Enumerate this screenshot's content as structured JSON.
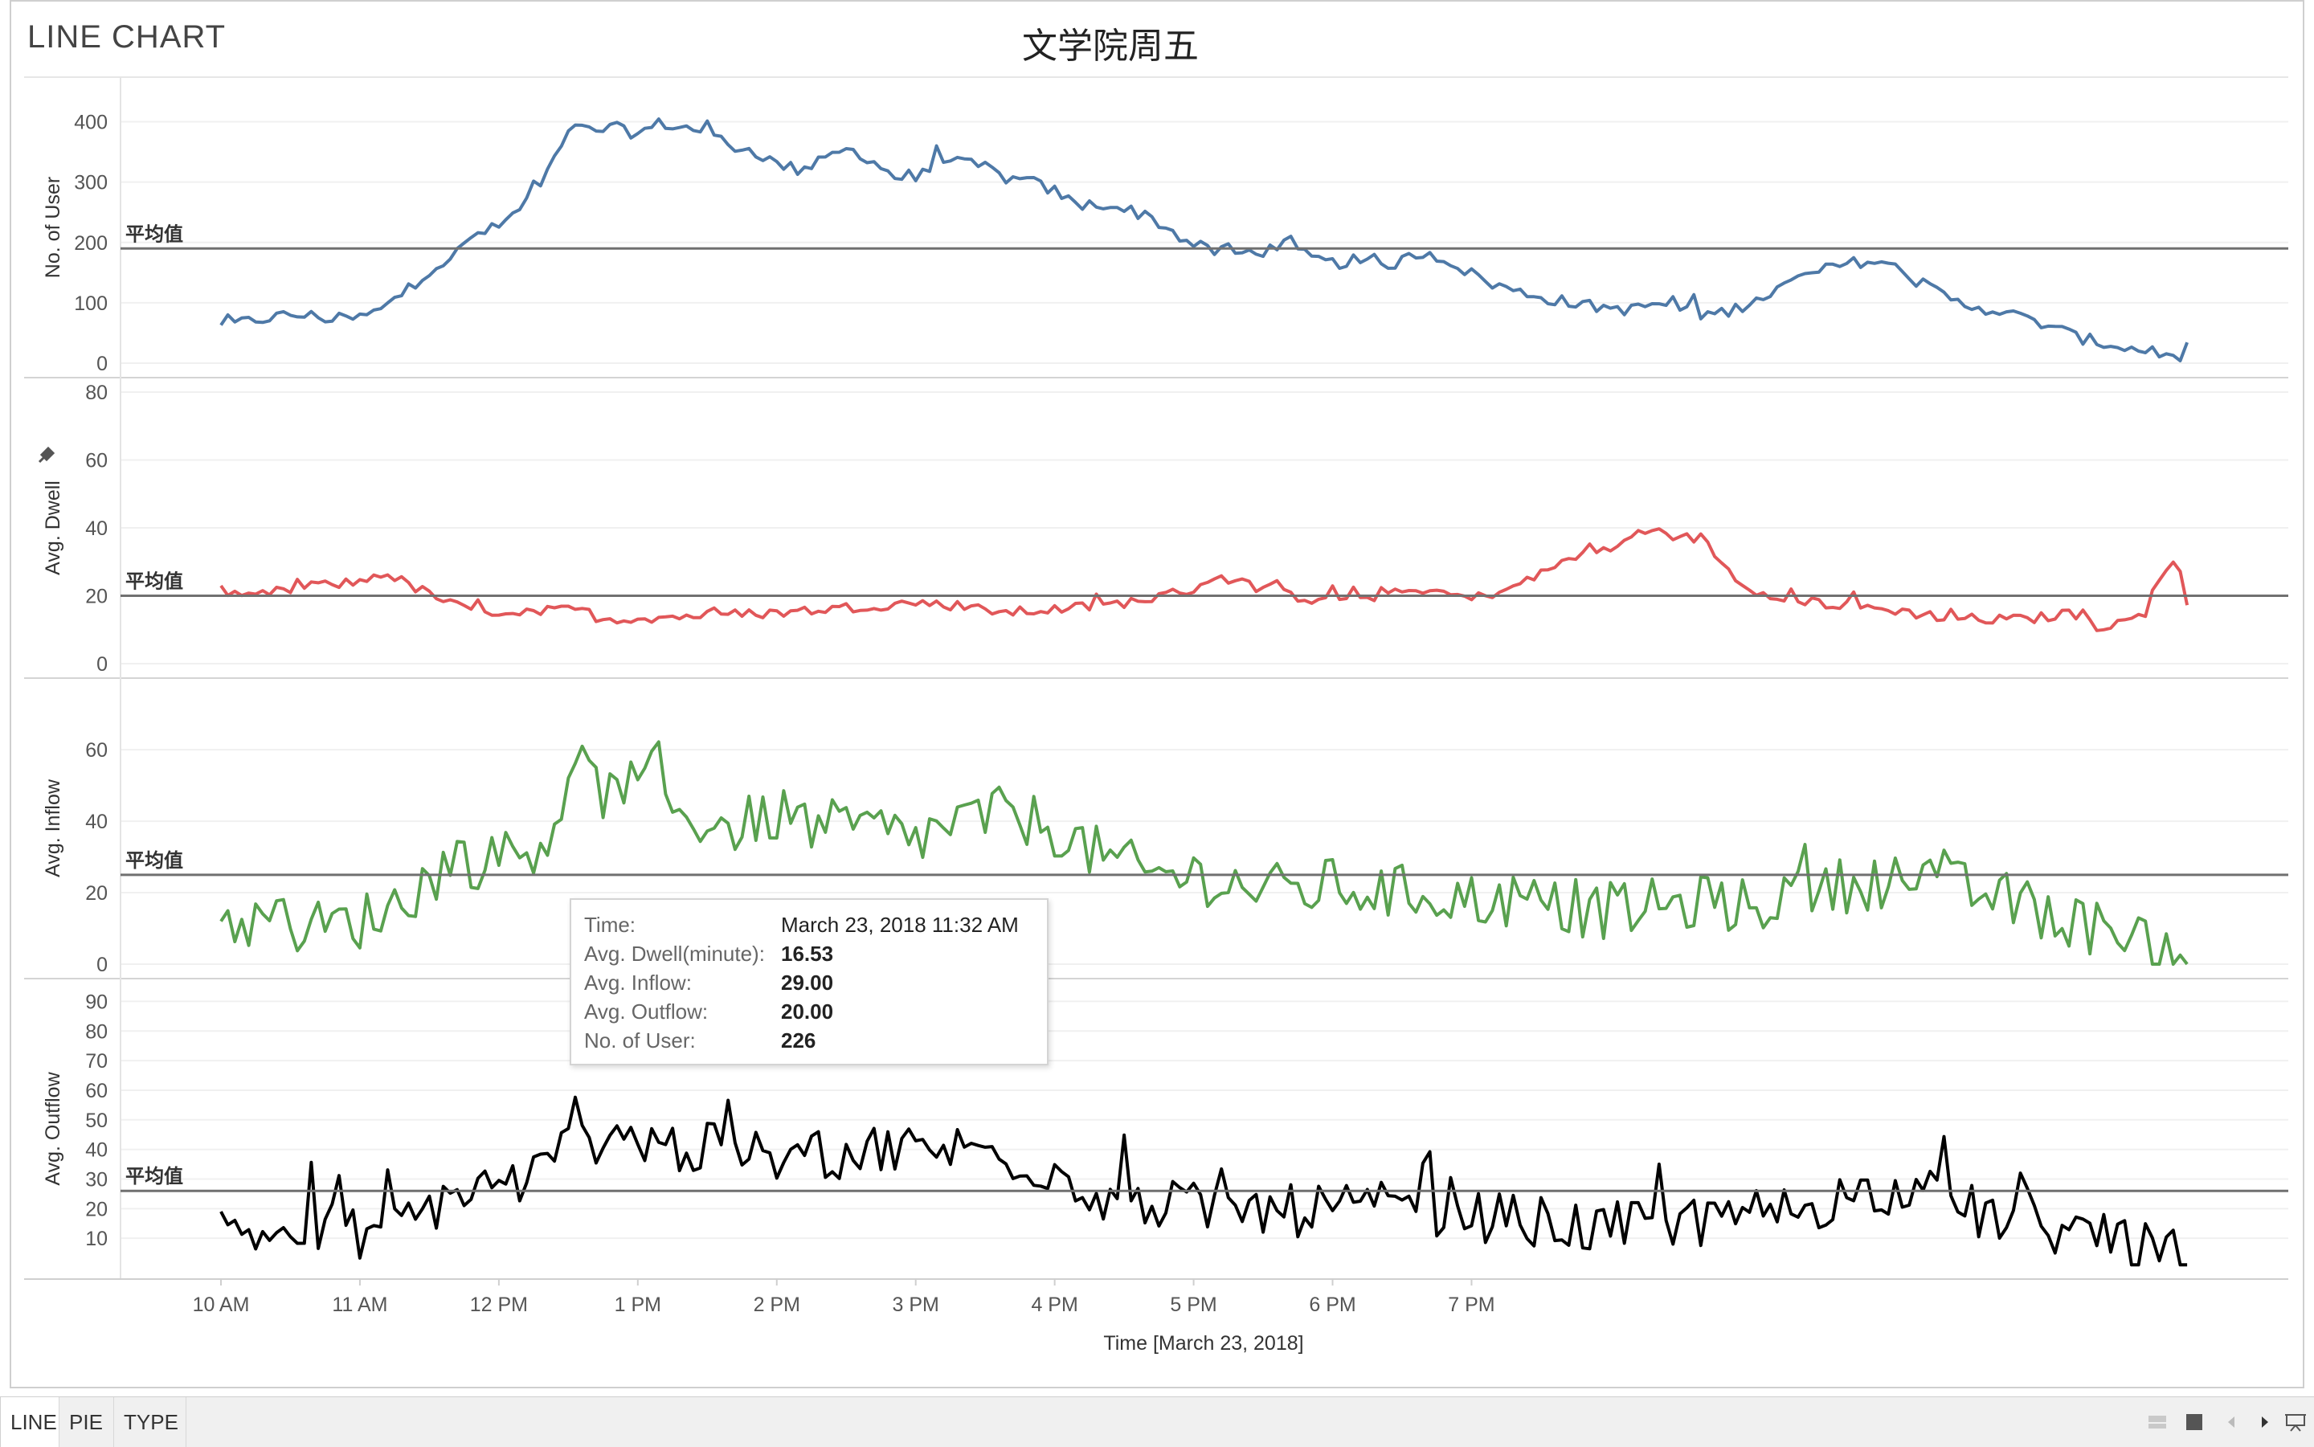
{
  "sheet": {
    "title": "LINE CHART"
  },
  "tabs": [
    {
      "label": "LINE"
    },
    {
      "label": "PIE"
    },
    {
      "label": "TYPE"
    }
  ],
  "nav_icons": [
    "grid-view-icon",
    "single-view-icon",
    "previous-icon",
    "next-icon",
    "present-icon"
  ],
  "tooltip": {
    "rows": [
      {
        "label": "Time:",
        "value": "March 23, 2018 11:32 AM"
      },
      {
        "label": "Avg. Dwell(minute):",
        "value": "16.53"
      },
      {
        "label": "Avg. Inflow:",
        "value": "29.00"
      },
      {
        "label": "Avg. Outflow:",
        "value": "20.00"
      },
      {
        "label": "No. of User:",
        "value": "226"
      }
    ]
  },
  "chart_data": {
    "type": "line",
    "title": "文学院周五",
    "xlabel": "Time [March 23, 2018]",
    "x_ticks": [
      "10 AM",
      "11 AM",
      "12 PM",
      "1 PM",
      "2 PM",
      "3 PM",
      "4 PM",
      "5 PM",
      "6 PM",
      "7 PM"
    ],
    "x_range": [
      "10:00 AM",
      "7:30 PM"
    ],
    "reference_label": "平均值",
    "panels": [
      {
        "name": "No. of User",
        "ylabel": "No. of User",
        "color": "#4e79a7",
        "ylim": [
          0,
          450
        ],
        "yticks": [
          0,
          100,
          200,
          300,
          400
        ],
        "reference": 190,
        "noise": 10,
        "points": [
          [
            0,
            60
          ],
          [
            10,
            68
          ],
          [
            20,
            75
          ],
          [
            30,
            80
          ],
          [
            40,
            78
          ],
          [
            50,
            72
          ],
          [
            60,
            75
          ],
          [
            70,
            90
          ],
          [
            80,
            120
          ],
          [
            90,
            155
          ],
          [
            100,
            175
          ],
          [
            110,
            215
          ],
          [
            120,
            225
          ],
          [
            130,
            260
          ],
          [
            140,
            310
          ],
          [
            145,
            350
          ],
          [
            150,
            390
          ],
          [
            160,
            385
          ],
          [
            170,
            390
          ],
          [
            180,
            380
          ],
          [
            190,
            398
          ],
          [
            200,
            390
          ],
          [
            210,
            385
          ],
          [
            220,
            360
          ],
          [
            230,
            352
          ],
          [
            240,
            330
          ],
          [
            250,
            320
          ],
          [
            260,
            335
          ],
          [
            270,
            355
          ],
          [
            280,
            340
          ],
          [
            290,
            310
          ],
          [
            300,
            300
          ],
          [
            310,
            345
          ],
          [
            320,
            330
          ],
          [
            330,
            325
          ],
          [
            340,
            305
          ],
          [
            350,
            300
          ],
          [
            360,
            285
          ],
          [
            370,
            260
          ],
          [
            380,
            265
          ],
          [
            390,
            255
          ],
          [
            400,
            245
          ],
          [
            410,
            220
          ],
          [
            420,
            195
          ],
          [
            430,
            185
          ],
          [
            440,
            182
          ],
          [
            450,
            186
          ],
          [
            460,
            195
          ],
          [
            470,
            175
          ],
          [
            480,
            165
          ],
          [
            490,
            170
          ],
          [
            500,
            158
          ],
          [
            510,
            170
          ],
          [
            520,
            185
          ],
          [
            530,
            170
          ],
          [
            540,
            148
          ],
          [
            550,
            130
          ],
          [
            560,
            118
          ],
          [
            570,
            110
          ],
          [
            580,
            102
          ],
          [
            590,
            95
          ],
          [
            600,
            92
          ],
          [
            610,
            88
          ],
          [
            620,
            100
          ],
          [
            630,
            90
          ],
          [
            640,
            80
          ],
          [
            650,
            85
          ],
          [
            660,
            100
          ],
          [
            670,
            118
          ],
          [
            680,
            138
          ],
          [
            690,
            152
          ],
          [
            700,
            162
          ],
          [
            710,
            170
          ],
          [
            720,
            165
          ],
          [
            730,
            140
          ],
          [
            740,
            120
          ],
          [
            750,
            100
          ],
          [
            760,
            92
          ],
          [
            770,
            85
          ],
          [
            780,
            72
          ],
          [
            790,
            62
          ],
          [
            800,
            45
          ],
          [
            810,
            35
          ],
          [
            820,
            28
          ],
          [
            830,
            20
          ],
          [
            835,
            15
          ],
          [
            840,
            12
          ],
          [
            850,
            15
          ]
        ]
      },
      {
        "name": "Avg. Dwell",
        "ylabel": "Avg. Dwell",
        "color": "#e15759",
        "ylim": [
          0,
          80
        ],
        "yticks": [
          0,
          20,
          40,
          60,
          80
        ],
        "reference": 20,
        "noise": 1.5,
        "points": [
          [
            0,
            22
          ],
          [
            5,
            18
          ],
          [
            15,
            20
          ],
          [
            40,
            23
          ],
          [
            60,
            24
          ],
          [
            70,
            27
          ],
          [
            85,
            22
          ],
          [
            95,
            19
          ],
          [
            105,
            16
          ],
          [
            130,
            15
          ],
          [
            155,
            16
          ],
          [
            165,
            13
          ],
          [
            200,
            14
          ],
          [
            240,
            15
          ],
          [
            260,
            16
          ],
          [
            300,
            18
          ],
          [
            320,
            17
          ],
          [
            340,
            15
          ],
          [
            360,
            16
          ],
          [
            380,
            17
          ],
          [
            400,
            19
          ],
          [
            420,
            22
          ],
          [
            430,
            26
          ],
          [
            450,
            22
          ],
          [
            470,
            19
          ],
          [
            500,
            20
          ],
          [
            520,
            22
          ],
          [
            540,
            19
          ],
          [
            560,
            23
          ],
          [
            580,
            30
          ],
          [
            590,
            34
          ],
          [
            600,
            33
          ],
          [
            610,
            38
          ],
          [
            620,
            40
          ],
          [
            630,
            37
          ],
          [
            640,
            37
          ],
          [
            650,
            28
          ],
          [
            660,
            22
          ],
          [
            680,
            19
          ],
          [
            700,
            17
          ],
          [
            720,
            16
          ],
          [
            740,
            14
          ],
          [
            760,
            13
          ],
          [
            780,
            13
          ],
          [
            790,
            14
          ],
          [
            800,
            15
          ],
          [
            810,
            11
          ],
          [
            820,
            12
          ],
          [
            830,
            14
          ],
          [
            840,
            28
          ],
          [
            845,
            31
          ],
          [
            850,
            15
          ]
        ]
      },
      {
        "name": "Avg. Inflow",
        "ylabel": "Avg. Inflow",
        "color": "#59a14f",
        "ylim": [
          0,
          76
        ],
        "yticks": [
          0,
          20,
          40,
          60
        ],
        "reference": 25,
        "noise": 8,
        "points": [
          [
            0,
            12
          ],
          [
            20,
            12
          ],
          [
            40,
            10
          ],
          [
            60,
            12
          ],
          [
            80,
            18
          ],
          [
            100,
            30
          ],
          [
            120,
            28
          ],
          [
            140,
            35
          ],
          [
            150,
            50
          ],
          [
            160,
            52
          ],
          [
            170,
            45
          ],
          [
            180,
            48
          ],
          [
            200,
            42
          ],
          [
            220,
            38
          ],
          [
            240,
            42
          ],
          [
            260,
            38
          ],
          [
            280,
            38
          ],
          [
            300,
            35
          ],
          [
            320,
            40
          ],
          [
            340,
            42
          ],
          [
            360,
            38
          ],
          [
            380,
            30
          ],
          [
            400,
            25
          ],
          [
            420,
            25
          ],
          [
            440,
            22
          ],
          [
            460,
            20
          ],
          [
            480,
            22
          ],
          [
            500,
            20
          ],
          [
            520,
            20
          ],
          [
            540,
            18
          ],
          [
            560,
            18
          ],
          [
            580,
            15
          ],
          [
            600,
            15
          ],
          [
            620,
            16
          ],
          [
            640,
            17
          ],
          [
            660,
            16
          ],
          [
            680,
            20
          ],
          [
            700,
            22
          ],
          [
            720,
            24
          ],
          [
            740,
            22
          ],
          [
            760,
            20
          ],
          [
            780,
            16
          ],
          [
            800,
            12
          ],
          [
            820,
            8
          ],
          [
            840,
            5
          ],
          [
            850,
            5
          ]
        ]
      },
      {
        "name": "Avg. Outflow",
        "ylabel": "Avg. Outflow",
        "color": "#000000",
        "ylim": [
          0,
          95
        ],
        "yticks": [
          10,
          20,
          30,
          40,
          50,
          60,
          70,
          80,
          90
        ],
        "reference": 26,
        "noise": 9,
        "points": [
          [
            0,
            12
          ],
          [
            20,
            12
          ],
          [
            40,
            12
          ],
          [
            60,
            12
          ],
          [
            80,
            15
          ],
          [
            100,
            25
          ],
          [
            120,
            28
          ],
          [
            140,
            32
          ],
          [
            150,
            42
          ],
          [
            160,
            44
          ],
          [
            180,
            44
          ],
          [
            200,
            40
          ],
          [
            220,
            40
          ],
          [
            240,
            36
          ],
          [
            260,
            38
          ],
          [
            280,
            40
          ],
          [
            300,
            40
          ],
          [
            320,
            40
          ],
          [
            340,
            38
          ],
          [
            360,
            33
          ],
          [
            380,
            25
          ],
          [
            400,
            22
          ],
          [
            420,
            20
          ],
          [
            440,
            20
          ],
          [
            460,
            19
          ],
          [
            480,
            20
          ],
          [
            500,
            20
          ],
          [
            520,
            19
          ],
          [
            540,
            18
          ],
          [
            560,
            16
          ],
          [
            580,
            14
          ],
          [
            600,
            13
          ],
          [
            620,
            15
          ],
          [
            640,
            16
          ],
          [
            660,
            18
          ],
          [
            680,
            20
          ],
          [
            700,
            24
          ],
          [
            720,
            26
          ],
          [
            740,
            24
          ],
          [
            760,
            18
          ],
          [
            780,
            15
          ],
          [
            800,
            12
          ],
          [
            820,
            8
          ],
          [
            840,
            5
          ],
          [
            850,
            3
          ]
        ]
      }
    ]
  }
}
